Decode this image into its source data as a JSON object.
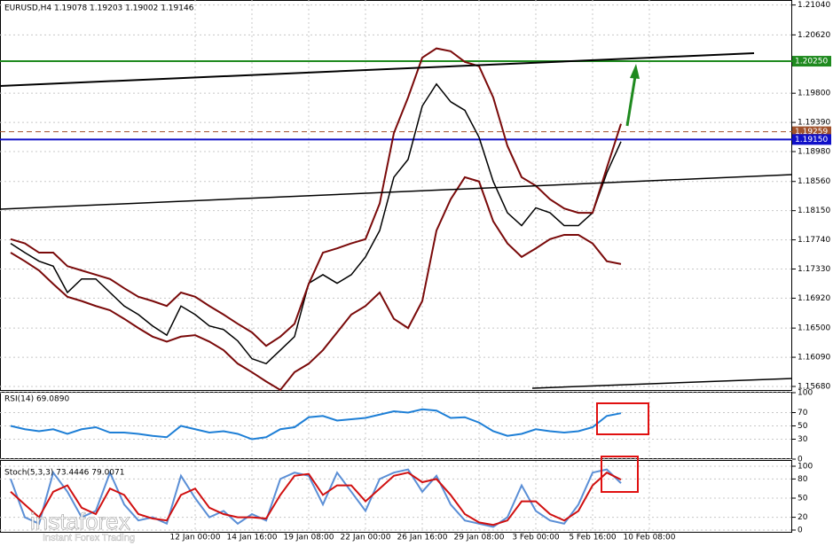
{
  "chart_data": [
    {
      "type": "line",
      "title": "EURUSD,H4 1.19078 1.19203 1.19002 1.19146",
      "categories": [
        null,
        null,
        null,
        null,
        null,
        null,
        null,
        null,
        null,
        null,
        null,
        null,
        null,
        "12 Jan 00:00",
        null,
        null,
        null,
        "14 Jan 16:00",
        null,
        null,
        null,
        "19 Jan 08:00",
        null,
        null,
        null,
        "22 Jan 00:00",
        null,
        null,
        null,
        "26 Jan 16:00",
        null,
        null,
        null,
        "29 Jan 08:00",
        null,
        null,
        null,
        "3 Feb 00:00",
        null,
        null,
        null,
        "5 Feb 16:00",
        null,
        null,
        null,
        "10 Feb 08:00"
      ],
      "series": [
        {
          "color": "#000000",
          "values": [
            1.1769,
            1.1756,
            1.1744,
            1.1737,
            1.17,
            1.1719,
            1.1719,
            1.17,
            1.1681,
            1.1669,
            1.1653,
            1.164,
            1.1681,
            1.1669,
            1.1653,
            1.1648,
            1.1632,
            1.1607,
            1.16,
            1.1619,
            1.1638,
            1.1713,
            1.1725,
            1.1713,
            1.1725,
            1.175,
            1.1787,
            1.1862,
            1.1887,
            1.1962,
            1.1993,
            1.1968,
            1.1956,
            1.1918,
            1.1856,
            1.1812,
            1.1794,
            1.1819,
            1.1812,
            1.1794,
            1.1794,
            1.1812,
            1.1868,
            1.1912,
            null,
            null
          ]
        },
        {
          "color": "#7a0a0a",
          "values": [
            1.1775,
            1.1769,
            1.1756,
            1.1756,
            1.1737,
            1.1731,
            1.1725,
            1.1719,
            1.1706,
            1.1694,
            1.1688,
            1.1681,
            1.17,
            1.1694,
            1.1681,
            1.1669,
            1.1656,
            1.1644,
            1.1625,
            1.1638,
            1.1656,
            1.1712,
            1.1756,
            1.1762,
            1.1769,
            1.1775,
            1.1825,
            1.1924,
            1.1974,
            1.203,
            1.2043,
            1.2039,
            1.2024,
            1.2018,
            1.1974,
            1.1906,
            1.1862,
            1.185,
            1.1831,
            1.1818,
            1.1812,
            1.1812,
            1.1875,
            1.1937,
            null,
            null
          ]
        },
        {
          "color": "#7a0a0a",
          "values": [
            1.1756,
            1.1744,
            1.1731,
            1.1712,
            1.1694,
            1.1688,
            1.1681,
            1.1675,
            1.1663,
            1.165,
            1.1638,
            1.1631,
            1.1638,
            1.164,
            1.1631,
            1.1619,
            1.16,
            1.1588,
            1.1575,
            1.1563,
            1.1588,
            1.16,
            1.1619,
            1.1644,
            1.1669,
            1.1681,
            1.17,
            1.1663,
            1.165,
            1.1688,
            1.1787,
            1.1831,
            1.1862,
            1.1856,
            1.18,
            1.1769,
            1.175,
            1.1762,
            1.1775,
            1.1781,
            1.1781,
            1.1769,
            1.1744,
            1.174,
            null,
            null
          ]
        }
      ],
      "ylim": [
        1.1563,
        1.2111
      ],
      "yticks": [
        {
          "value": 1.2104,
          "label": "1.21040"
        },
        {
          "value": 1.2062,
          "label": "1.20620"
        },
        {
          "value": 1.198,
          "label": "1.19800"
        },
        {
          "value": 1.1939,
          "label": "1.19390"
        },
        {
          "value": 1.1898,
          "label": "1.18980"
        },
        {
          "value": 1.1856,
          "label": "1.18560"
        },
        {
          "value": 1.1815,
          "label": "1.18150"
        },
        {
          "value": 1.1774,
          "label": "1.17740"
        },
        {
          "value": 1.1733,
          "label": "1.17330"
        },
        {
          "value": 1.1692,
          "label": "1.16920"
        },
        {
          "value": 1.165,
          "label": "1.16500"
        },
        {
          "value": 1.1609,
          "label": "1.16090"
        },
        {
          "value": 1.1568,
          "label": "1.15680"
        }
      ],
      "levels": [
        {
          "value": 1.2025,
          "label": "1.20250",
          "color": "#1f8a1f",
          "style": "solid"
        },
        {
          "value": 1.19259,
          "label": "1.19259",
          "color": "#a0522d",
          "style": "dashed"
        },
        {
          "value": 1.1915,
          "label": "1.19150",
          "color": "#1010c8",
          "style": "solid"
        }
      ],
      "grid": true
    },
    {
      "type": "line",
      "title": "RSI(14) 69.0890",
      "series": [
        {
          "color": "#1e7fd6",
          "values": [
            50,
            45,
            42,
            45,
            38,
            45,
            48,
            40,
            40,
            38,
            35,
            33,
            50,
            45,
            40,
            42,
            38,
            30,
            33,
            45,
            48,
            63,
            65,
            58,
            60,
            62,
            67,
            72,
            70,
            75,
            73,
            62,
            63,
            55,
            42,
            35,
            38,
            45,
            42,
            40,
            42,
            48,
            65,
            69.089,
            null,
            null
          ]
        }
      ],
      "ylim": [
        0,
        100
      ],
      "yticks": [
        100,
        70,
        50,
        30,
        0
      ],
      "grid": true
    },
    {
      "type": "line",
      "title": "Stoch(5,3,3) 73.4446 79.0071",
      "series": [
        {
          "color": "#5b8fd6",
          "values": [
            80,
            20,
            10,
            90,
            60,
            20,
            30,
            90,
            40,
            15,
            20,
            10,
            85,
            50,
            20,
            30,
            10,
            25,
            15,
            80,
            90,
            85,
            40,
            90,
            60,
            30,
            80,
            90,
            95,
            60,
            85,
            40,
            15,
            10,
            5,
            20,
            70,
            30,
            15,
            10,
            40,
            90,
            95,
            73.4446,
            null,
            null
          ]
        },
        {
          "color": "#d01010",
          "values": [
            60,
            40,
            20,
            60,
            70,
            35,
            25,
            65,
            55,
            25,
            18,
            15,
            55,
            65,
            35,
            25,
            20,
            20,
            18,
            55,
            85,
            88,
            55,
            70,
            70,
            45,
            65,
            85,
            90,
            75,
            80,
            55,
            25,
            12,
            8,
            15,
            45,
            45,
            25,
            15,
            30,
            70,
            90,
            79.0071,
            null,
            null
          ]
        }
      ],
      "ylim": [
        0,
        100
      ],
      "yticks": [
        100,
        80,
        50,
        20,
        0
      ],
      "grid": true
    }
  ],
  "watermark": {
    "brand": "instaforex",
    "tagline": "Instant Forex Trading"
  }
}
